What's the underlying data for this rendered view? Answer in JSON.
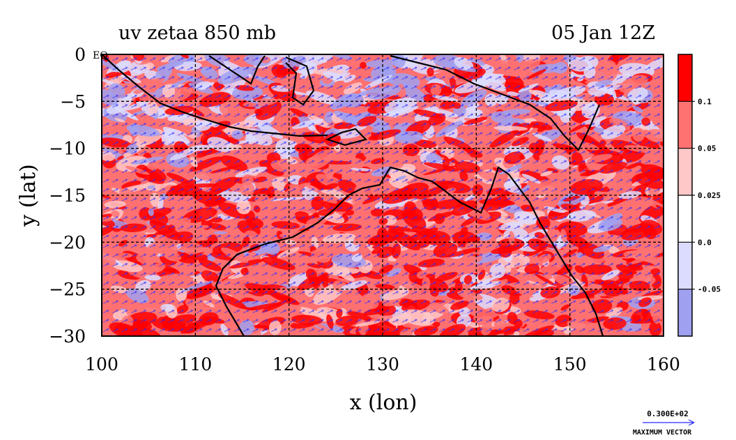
{
  "chart_data": {
    "type": "heatmap",
    "title": "uv zetaa 850 mb",
    "subtitle": "05 Jan 12Z",
    "xlabel": "x (lon)",
    "ylabel": "y (lat)",
    "xlim": [
      100,
      160
    ],
    "ylim": [
      -30,
      0
    ],
    "x_ticks": [
      "100",
      "110",
      "120",
      "130",
      "140",
      "150",
      "160"
    ],
    "y_ticks": [
      "0",
      "−5",
      "−10",
      "−15",
      "−20",
      "−25",
      "−30"
    ],
    "eq_label": "EQ",
    "grid": true,
    "colorbar": {
      "levels": [
        "0.1",
        "0.05",
        "0.025",
        "0.0",
        "-0.05"
      ],
      "colors": [
        "#ff0000",
        "#ff7272",
        "#ffc8c8",
        "#ffffff",
        "#dcdcff",
        "#a0a0f0"
      ]
    },
    "vector_reference": {
      "value": "0.300E+02",
      "label": "MAXIMUM VECTOR"
    },
    "colors": {
      "strong_positive": "#ff0000",
      "positive": "#ff7272",
      "weak_positive": "#ffc8c8",
      "neutral": "#ffffff",
      "weak_negative": "#dcdcff",
      "negative": "#a0a0f0",
      "vectors": "#2020ff",
      "coastline": "#000000"
    }
  }
}
